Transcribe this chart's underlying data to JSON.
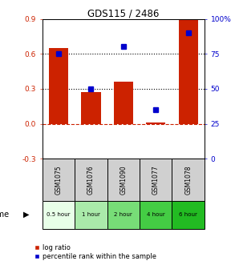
{
  "title": "GDS115 / 2486",
  "samples": [
    "GSM1075",
    "GSM1076",
    "GSM1090",
    "GSM1077",
    "GSM1078"
  ],
  "time_labels": [
    "0.5 hour",
    "1 hour",
    "2 hour",
    "4 hour",
    "6 hour"
  ],
  "time_colors": [
    "#e8ffe8",
    "#aaeaaa",
    "#77dd77",
    "#44cc44",
    "#22bb22"
  ],
  "log_ratios": [
    0.65,
    0.27,
    0.36,
    0.01,
    0.9
  ],
  "percentiles": [
    75,
    50,
    80,
    35,
    90
  ],
  "bar_color": "#cc2200",
  "dot_color": "#0000cc",
  "ylim_left": [
    -0.3,
    0.9
  ],
  "ylim_right": [
    0,
    100
  ],
  "yticks_left": [
    -0.3,
    0.0,
    0.3,
    0.6,
    0.9
  ],
  "yticks_right": [
    0,
    25,
    50,
    75,
    100
  ],
  "hline_dotted": [
    0.3,
    0.6
  ],
  "hline_dashed": 0.0,
  "legend_bar": "log ratio",
  "legend_dot": "percentile rank within the sample",
  "sample_bg": "#d0d0d0"
}
